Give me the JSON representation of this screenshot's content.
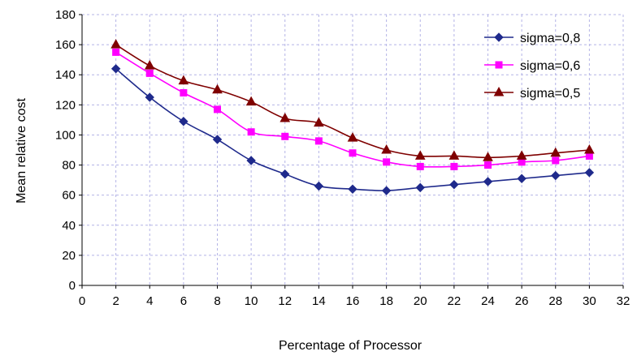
{
  "chart_data": {
    "type": "line",
    "title": "",
    "xlabel": "Percentage of Processor",
    "ylabel": "Mean relative cost",
    "xlim": [
      0,
      32
    ],
    "ylim": [
      0,
      180
    ],
    "xticks": [
      0,
      2,
      4,
      6,
      8,
      10,
      12,
      14,
      16,
      18,
      20,
      22,
      24,
      26,
      28,
      30,
      32
    ],
    "yticks": [
      0,
      20,
      40,
      60,
      80,
      100,
      120,
      140,
      160,
      180
    ],
    "grid": true,
    "legend_position": "top-right",
    "x": [
      2,
      4,
      6,
      8,
      10,
      12,
      14,
      16,
      18,
      20,
      22,
      24,
      26,
      28,
      30
    ],
    "series": [
      {
        "name": "sigma=0,8",
        "color": "#1f2a8c",
        "marker": "diamond",
        "values": [
          144,
          125,
          109,
          97,
          83,
          74,
          66,
          64,
          63,
          65,
          67,
          69,
          71,
          73,
          75
        ]
      },
      {
        "name": "sigma=0,6",
        "color": "#ff00ff",
        "marker": "square",
        "values": [
          155,
          141,
          128,
          117,
          102,
          99,
          96,
          88,
          82,
          79,
          79,
          80,
          82,
          83,
          86
        ]
      },
      {
        "name": "sigma=0,5",
        "color": "#7f0000",
        "marker": "triangle",
        "values": [
          160,
          146,
          136,
          130,
          122,
          111,
          108,
          98,
          90,
          86,
          86,
          85,
          86,
          88,
          90
        ]
      }
    ]
  }
}
